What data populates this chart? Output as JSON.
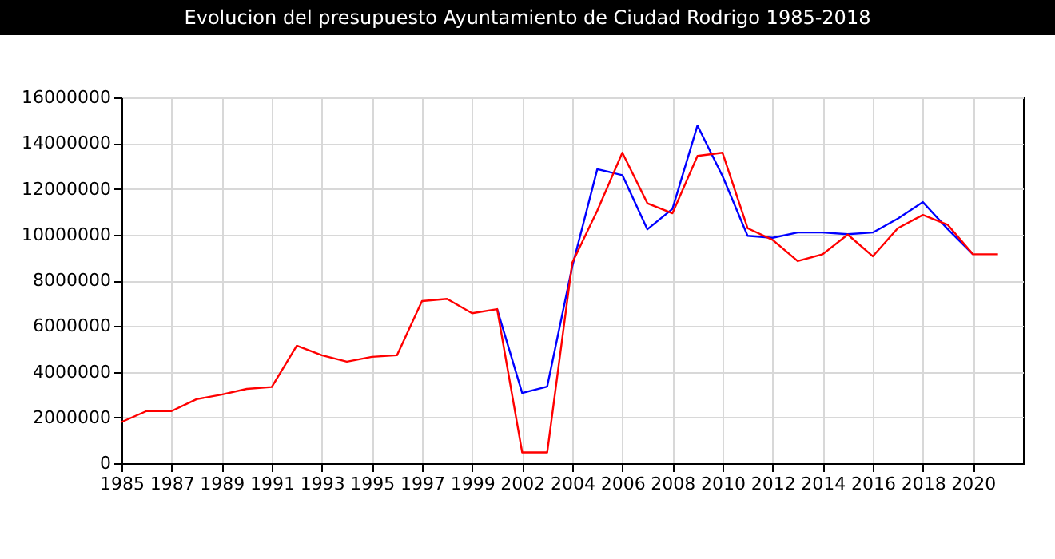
{
  "chart_data": {
    "type": "line",
    "title": "Evolucion del presupuesto Ayuntamiento de Ciudad Rodrigo 1985-2018",
    "categories": [
      "1985",
      null,
      "1987",
      null,
      "1989",
      null,
      "1991",
      null,
      "1993",
      null,
      "1995",
      null,
      "1997",
      null,
      "1999",
      null,
      "2002",
      null,
      "2004",
      null,
      "2006",
      null,
      "2008",
      null,
      "2010",
      null,
      "2012",
      null,
      "2014",
      null,
      "2016",
      null,
      "2018",
      null,
      "2020",
      null,
      null
    ],
    "series": [
      {
        "color": "#0000ff",
        "values": [
          null,
          null,
          null,
          null,
          null,
          null,
          null,
          null,
          null,
          null,
          null,
          null,
          null,
          null,
          null,
          6740000,
          3070000,
          3350000,
          8600000,
          12860000,
          12600000,
          10230000,
          11120000,
          14770000,
          12560000,
          9950000,
          9860000,
          10090000,
          10090000,
          10020000,
          10090000,
          10700000,
          11420000,
          10230000,
          9140000,
          null,
          null
        ]
      },
      {
        "color": "#ff0000",
        "values": [
          1800000,
          2280000,
          2280000,
          2800000,
          3000000,
          3250000,
          3330000,
          5140000,
          4720000,
          4440000,
          4650000,
          4720000,
          7090000,
          7190000,
          6560000,
          6740000,
          470000,
          470000,
          8770000,
          11050000,
          13580000,
          11370000,
          10930000,
          13440000,
          13580000,
          10280000,
          9770000,
          8840000,
          9140000,
          10000000,
          9050000,
          10280000,
          10860000,
          10420000,
          9140000,
          9140000,
          null
        ]
      }
    ],
    "ylim": [
      0,
      16000000
    ],
    "yticks": [
      0,
      2000000,
      4000000,
      6000000,
      8000000,
      10000000,
      12000000,
      14000000,
      16000000
    ],
    "grid": true,
    "legend": false,
    "marker": "none",
    "line_style": "solid"
  }
}
